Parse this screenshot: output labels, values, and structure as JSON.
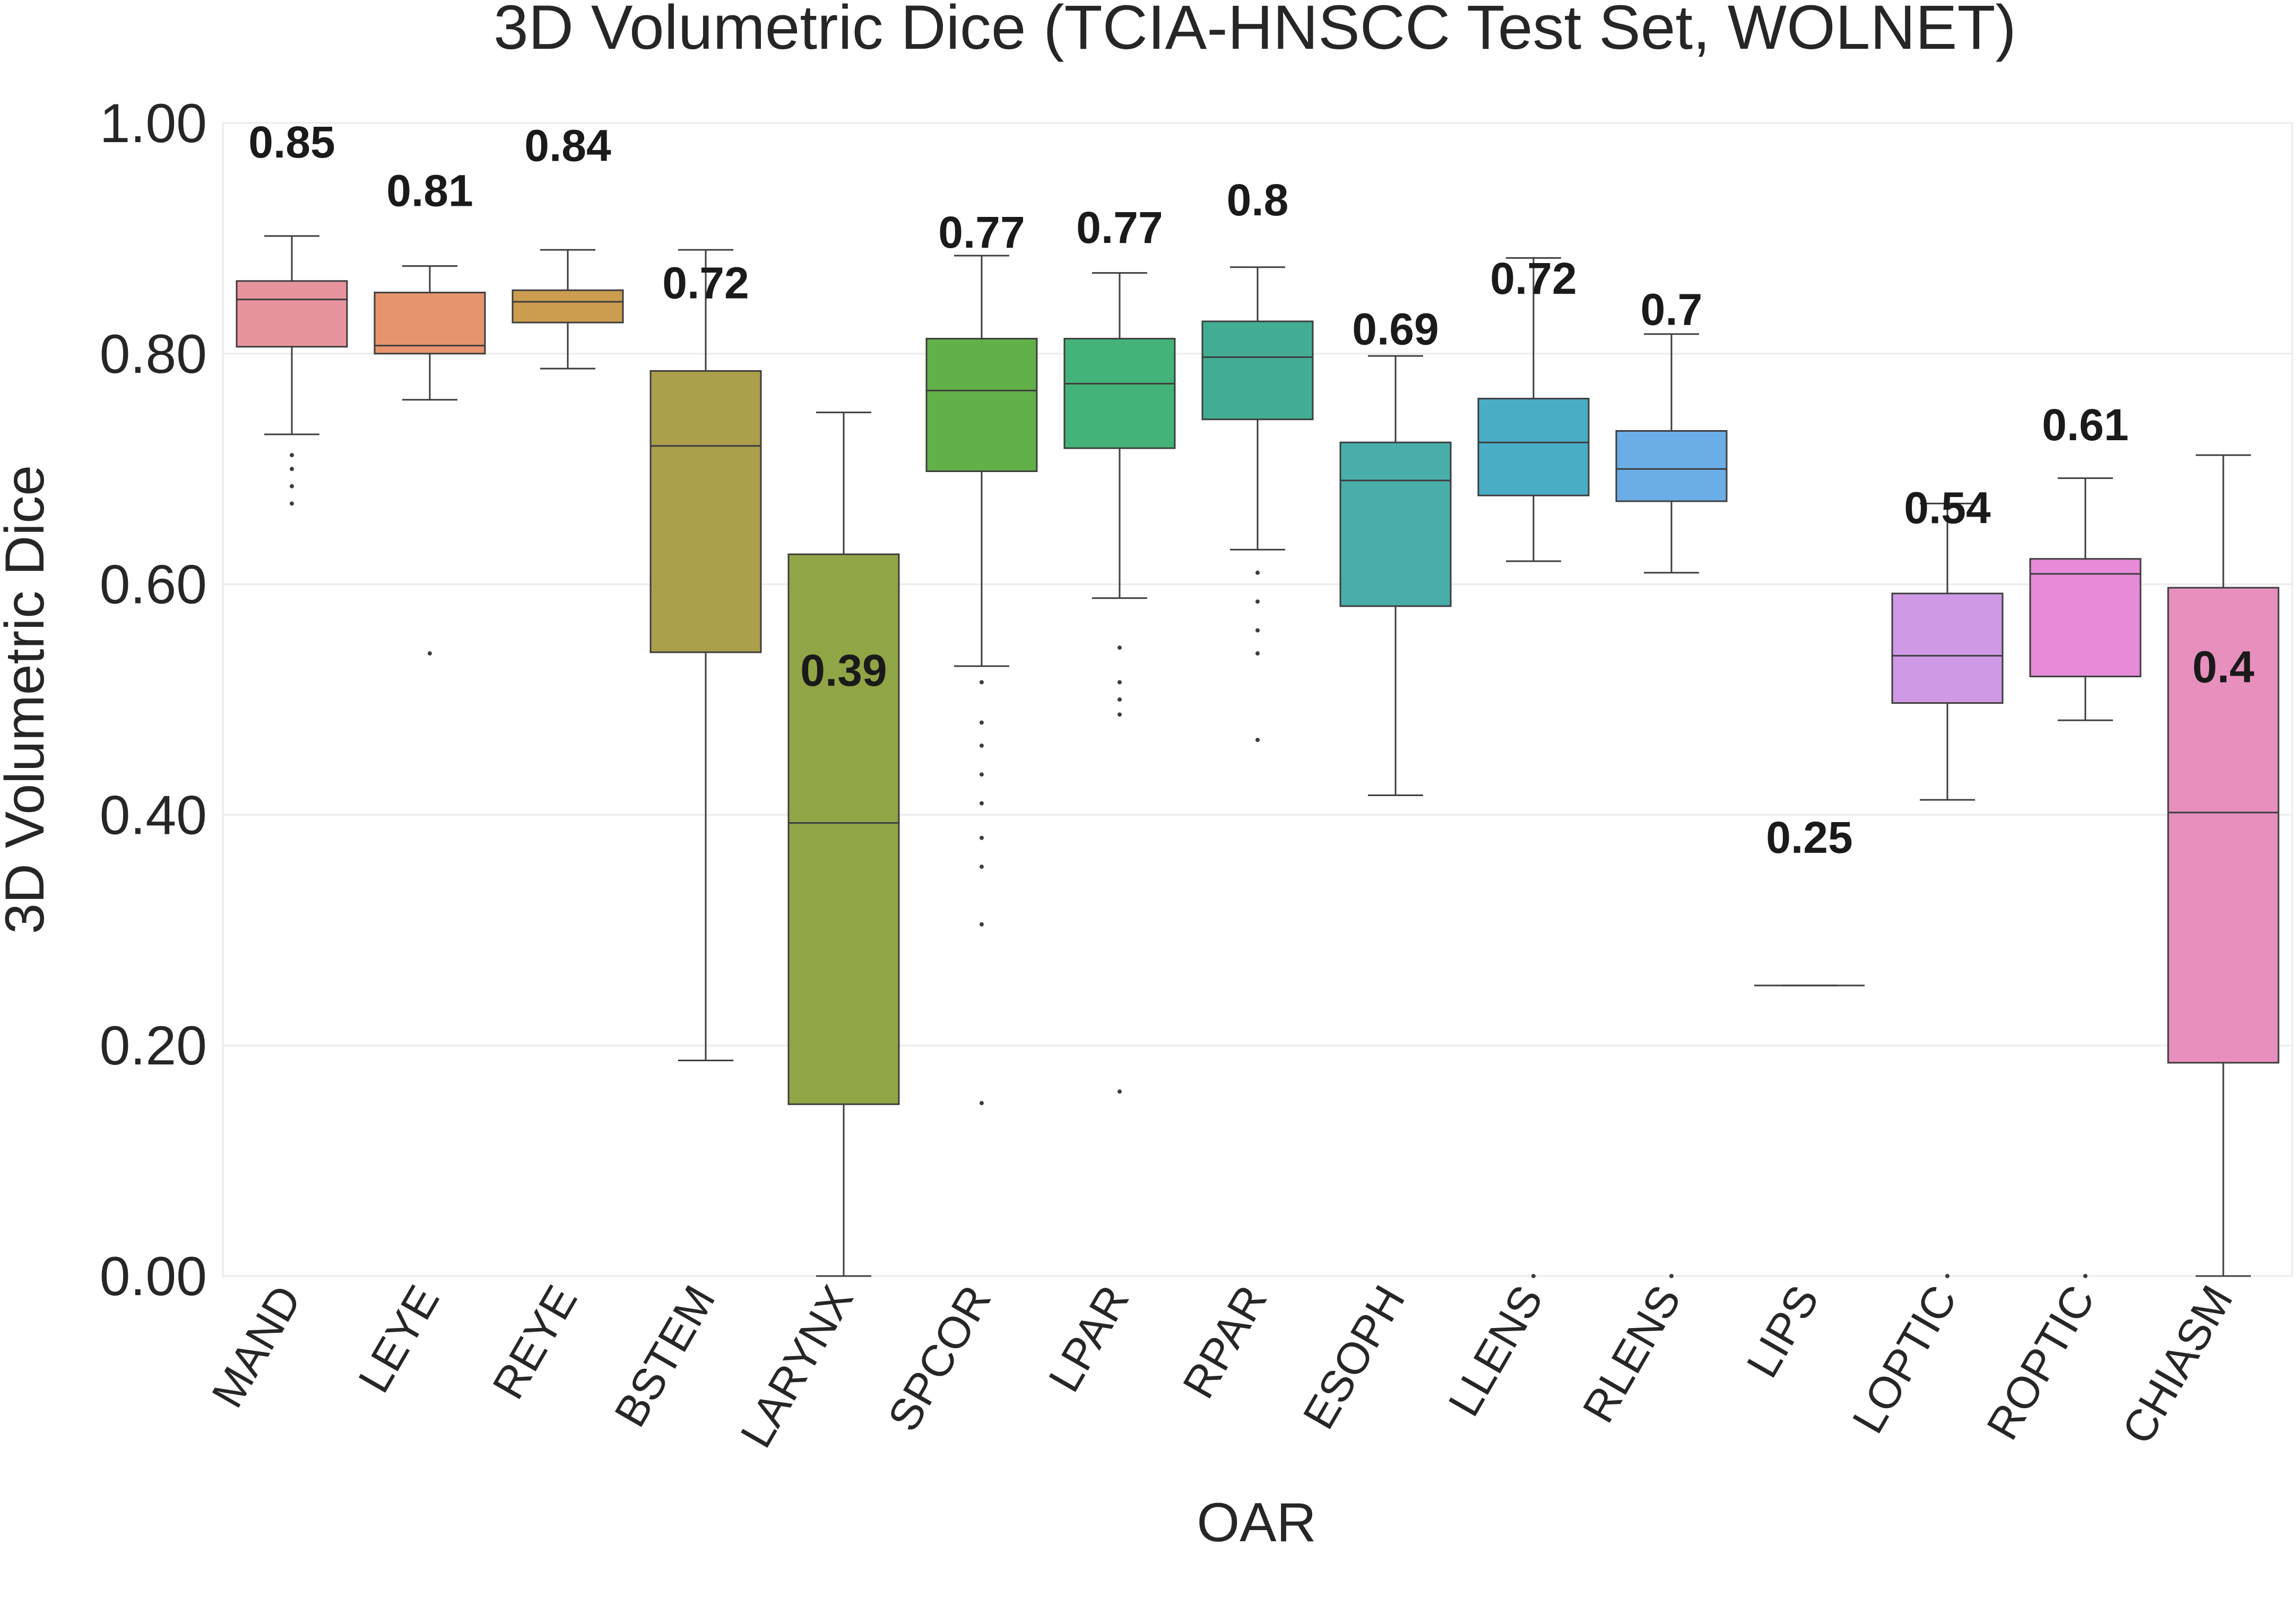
{
  "chart_data": {
    "type": "box",
    "title": "3D Volumetric Dice (TCIA-HNSCC Test Set, WOLNET)",
    "xlabel": "OAR",
    "ylabel": "3D Volumetric Dice",
    "ylim": [
      0,
      1
    ],
    "yticks": [
      0.0,
      0.2,
      0.4,
      0.6,
      0.8,
      1.0
    ],
    "ytick_labels": [
      "0.00",
      "0.20",
      "0.40",
      "0.60",
      "0.80",
      "1.00"
    ],
    "grid": true,
    "categories": [
      "MAND",
      "LEYE",
      "REYE",
      "BSTEM",
      "LARYNX",
      "SPCOR",
      "LPAR",
      "RPAR",
      "ESOPH",
      "LLENS",
      "RLENS",
      "LIPS",
      "LOPTIC",
      "ROPTIC",
      "CHIASM"
    ],
    "boxes": [
      {
        "label": "MAND",
        "color": "#e8949f",
        "whisker_low": 0.73,
        "q1": 0.806,
        "median": 0.847,
        "q3": 0.863,
        "whisker_high": 0.902,
        "outliers": [
          0.712,
          0.7,
          0.685,
          0.67
        ],
        "annotation": "0.85",
        "annotation_y": 0.97
      },
      {
        "label": "LEYE",
        "color": "#e5946e",
        "whisker_low": 0.76,
        "q1": 0.8,
        "median": 0.807,
        "q3": 0.853,
        "whisker_high": 0.876,
        "outliers": [
          0.54
        ],
        "annotation": "0.81",
        "annotation_y": 0.928
      },
      {
        "label": "REYE",
        "color": "#cc9c4f",
        "whisker_low": 0.787,
        "q1": 0.827,
        "median": 0.845,
        "q3": 0.855,
        "whisker_high": 0.89,
        "outliers": [],
        "annotation": "0.84",
        "annotation_y": 0.967
      },
      {
        "label": "BSTEM",
        "color": "#ab9f4c",
        "whisker_low": 0.187,
        "q1": 0.541,
        "median": 0.72,
        "q3": 0.785,
        "whisker_high": 0.89,
        "outliers": [],
        "annotation": "0.72",
        "annotation_y": 0.848
      },
      {
        "label": "LARYNX",
        "color": "#90a546",
        "whisker_low": 0.0,
        "q1": 0.149,
        "median": 0.393,
        "q3": 0.626,
        "whisker_high": 0.749,
        "outliers": [],
        "annotation": "0.39",
        "annotation_y": 0.512
      },
      {
        "label": "SPCOR",
        "color": "#62b048",
        "whisker_low": 0.529,
        "q1": 0.698,
        "median": 0.768,
        "q3": 0.813,
        "whisker_high": 0.885,
        "outliers": [
          0.515,
          0.48,
          0.46,
          0.435,
          0.41,
          0.38,
          0.355,
          0.305,
          0.15
        ],
        "annotation": "0.77",
        "annotation_y": 0.892
      },
      {
        "label": "LPAR",
        "color": "#43b379",
        "whisker_low": 0.588,
        "q1": 0.718,
        "median": 0.774,
        "q3": 0.813,
        "whisker_high": 0.87,
        "outliers": [
          0.545,
          0.515,
          0.5,
          0.487,
          0.16
        ],
        "annotation": "0.77",
        "annotation_y": 0.896
      },
      {
        "label": "RPAR",
        "color": "#43ad93",
        "whisker_low": 0.63,
        "q1": 0.743,
        "median": 0.797,
        "q3": 0.828,
        "whisker_high": 0.875,
        "outliers": [
          0.61,
          0.585,
          0.56,
          0.54,
          0.465
        ],
        "annotation": "0.8",
        "annotation_y": 0.92
      },
      {
        "label": "ESOPH",
        "color": "#49ada9",
        "whisker_low": 0.417,
        "q1": 0.581,
        "median": 0.69,
        "q3": 0.723,
        "whisker_high": 0.798,
        "outliers": [],
        "annotation": "0.69",
        "annotation_y": 0.808
      },
      {
        "label": "LLENS",
        "color": "#4aadc6",
        "whisker_low": 0.62,
        "q1": 0.677,
        "median": 0.723,
        "q3": 0.761,
        "whisker_high": 0.883,
        "outliers": [
          0.0
        ],
        "annotation": "0.72",
        "annotation_y": 0.852
      },
      {
        "label": "RLENS",
        "color": "#6baee6",
        "whisker_low": 0.61,
        "q1": 0.672,
        "median": 0.7,
        "q3": 0.733,
        "whisker_high": 0.817,
        "outliers": [
          0.0
        ],
        "annotation": "0.7",
        "annotation_y": 0.825
      },
      {
        "label": "LIPS",
        "color": "#a1a4e6",
        "whisker_low": 0.252,
        "q1": 0.252,
        "median": 0.252,
        "q3": 0.252,
        "whisker_high": 0.252,
        "outliers": [],
        "annotation": "0.25",
        "annotation_y": 0.367
      },
      {
        "label": "LOPTIC",
        "color": "#cf99e6",
        "whisker_low": 0.413,
        "q1": 0.497,
        "median": 0.538,
        "q3": 0.592,
        "whisker_high": 0.67,
        "outliers": [
          0.0
        ],
        "annotation": "0.54",
        "annotation_y": 0.653
      },
      {
        "label": "ROPTIC",
        "color": "#e78ad8",
        "whisker_low": 0.482,
        "q1": 0.52,
        "median": 0.609,
        "q3": 0.622,
        "whisker_high": 0.692,
        "outliers": [
          0.0
        ],
        "annotation": "0.61",
        "annotation_y": 0.725
      },
      {
        "label": "CHIASM",
        "color": "#e78fbd",
        "whisker_low": 0.0,
        "q1": 0.185,
        "median": 0.402,
        "q3": 0.597,
        "whisker_high": 0.712,
        "outliers": [],
        "annotation": "0.4",
        "annotation_y": 0.515
      }
    ]
  }
}
